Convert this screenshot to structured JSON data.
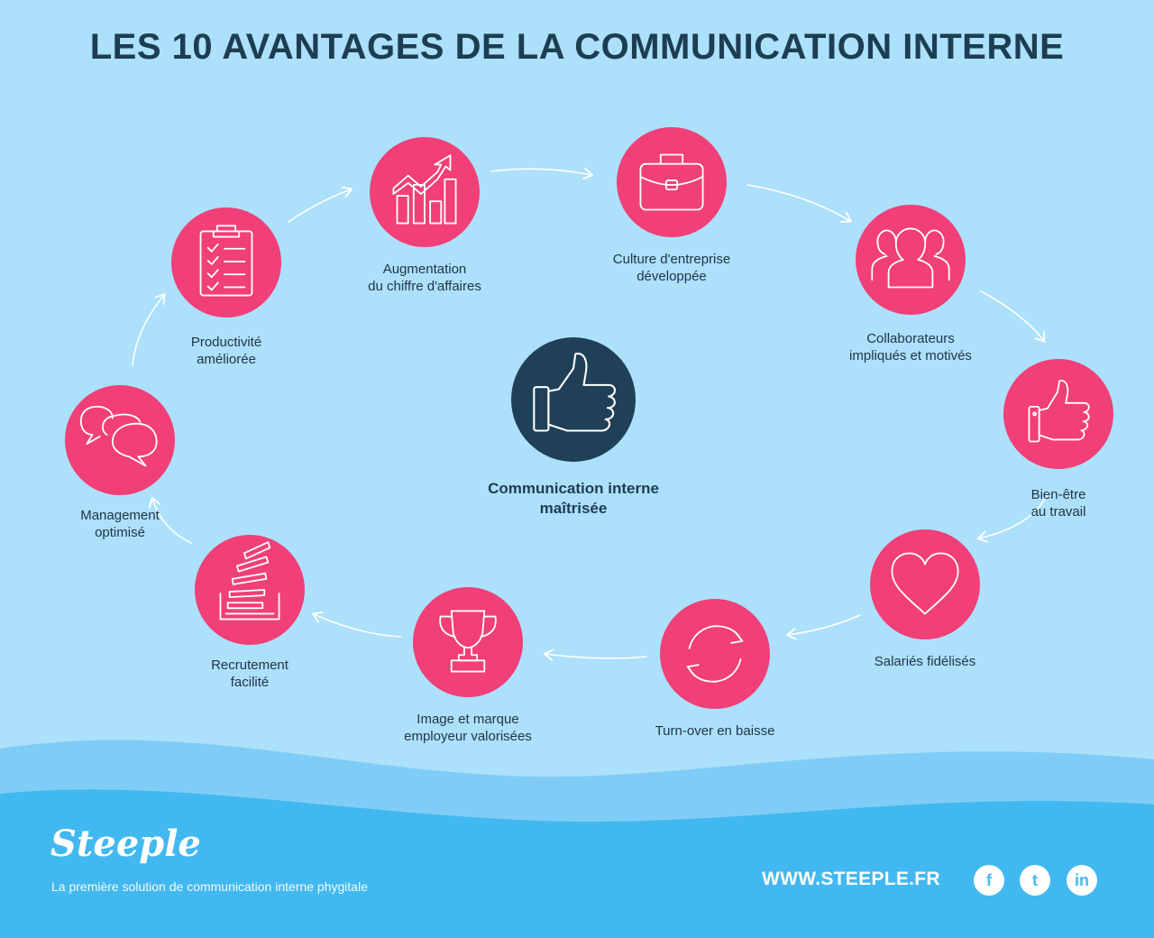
{
  "title": "LES 10 AVANTAGES DE LA COMMUNICATION INTERNE",
  "center": {
    "icon": "thumbs-up-icon",
    "label_line1": "Communication interne",
    "label_line2": "maîtrisée"
  },
  "benefits": [
    {
      "icon": "growth-chart-icon",
      "line1": "Augmentation",
      "line2": "du chiffre d'affaires"
    },
    {
      "icon": "briefcase-icon",
      "line1": "Culture d'entreprise",
      "line2": "développée"
    },
    {
      "icon": "people-group-icon",
      "line1": "Collaborateurs",
      "line2": "impliqués et motivés"
    },
    {
      "icon": "thumbs-up-icon",
      "line1": "Bien-être",
      "line2": "au travail"
    },
    {
      "icon": "heart-icon",
      "line1": "Salariés fidélisés",
      "line2": ""
    },
    {
      "icon": "refresh-icon",
      "line1": "Turn-over en baisse",
      "line2": ""
    },
    {
      "icon": "trophy-icon",
      "line1": "Image et marque",
      "line2": "employeur valorisées"
    },
    {
      "icon": "paper-stack-icon",
      "line1": "Recrutement",
      "line2": "facilité"
    },
    {
      "icon": "speech-bubbles-icon",
      "line1": "Management",
      "line2": "optimisé"
    },
    {
      "icon": "clipboard-checklist-icon",
      "line1": "Productivité",
      "line2": "améliorée"
    }
  ],
  "footer": {
    "brand": "Steeple",
    "tagline": "La première solution de communication interne phygitale",
    "website": "WWW.STEEPLE.FR",
    "social": [
      {
        "icon": "facebook-icon",
        "glyph": "f"
      },
      {
        "icon": "twitter-icon",
        "glyph": "t"
      },
      {
        "icon": "linkedin-icon",
        "glyph": "in"
      }
    ]
  },
  "colors": {
    "background": "#ace0fb",
    "circle": "#f13f77",
    "center_circle": "#1f4057",
    "title": "#1d3d52",
    "wave_light": "#7fcdf6",
    "wave_dark": "#42b8f0"
  }
}
